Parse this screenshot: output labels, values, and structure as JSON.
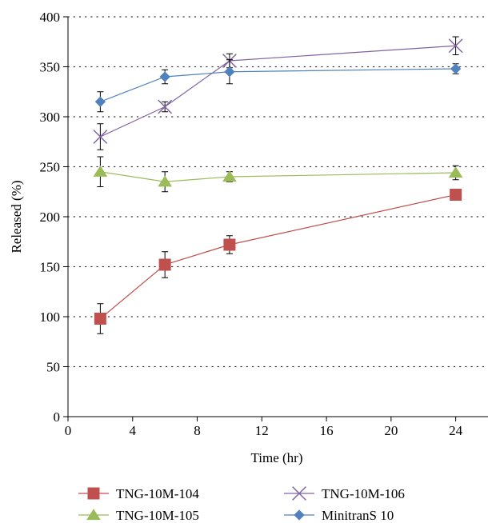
{
  "chart_data": {
    "type": "line",
    "title": "",
    "xlabel": "Time (hr)",
    "ylabel": "Released (%)",
    "xlim": [
      0,
      26
    ],
    "ylim": [
      0,
      400
    ],
    "xticks": [
      0,
      4,
      8,
      12,
      16,
      20,
      24
    ],
    "yticks": [
      0,
      50,
      100,
      150,
      200,
      250,
      300,
      350,
      400
    ],
    "grid": "horizontal dotted",
    "legend_position": "bottom",
    "x": [
      2,
      6,
      10,
      24
    ],
    "series": [
      {
        "name": "TNG-10M-104",
        "marker": "square",
        "color": "#c0504d",
        "values": [
          98,
          152,
          172,
          222
        ],
        "error": [
          15,
          13,
          9,
          5
        ]
      },
      {
        "name": "TNG-10M-105",
        "marker": "triangle",
        "color": "#9bbb59",
        "values": [
          245,
          235,
          240,
          244
        ],
        "error": [
          15,
          10,
          5,
          7
        ]
      },
      {
        "name": "TNG-10M-106",
        "marker": "x",
        "color": "#8064a2",
        "values": [
          280,
          310,
          356,
          371
        ],
        "error": [
          13,
          5,
          7,
          9
        ]
      },
      {
        "name": "MinitranS 10",
        "marker": "diamond",
        "color": "#4f81bd",
        "values": [
          315,
          340,
          345,
          348
        ],
        "error": [
          10,
          7,
          12,
          5
        ]
      }
    ]
  }
}
